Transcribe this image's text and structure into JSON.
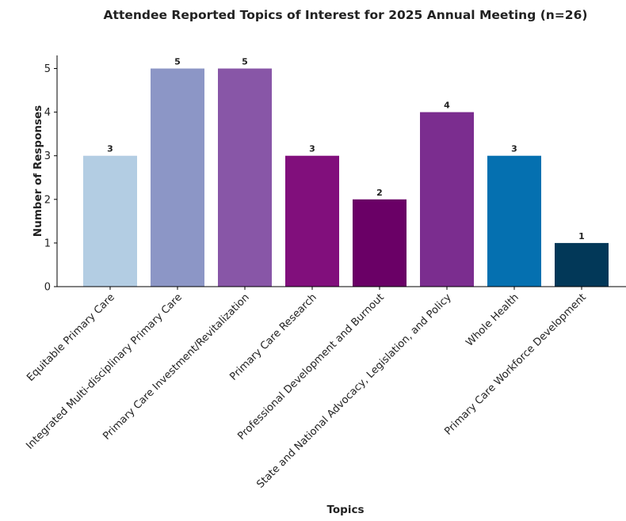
{
  "chart_data": {
    "type": "bar",
    "title": "Attendee Reported Topics of Interest for 2025 Annual Meeting (n=26)",
    "xlabel": "Topics",
    "ylabel": "Number of Responses",
    "categories": [
      "Equitable Primary Care",
      "Integrated Multi-disciplinary Primary Care",
      "Primary Care Investment/Revitalization",
      "Primary Care Research",
      "Professional Development and Burnout",
      "State and National Advocacy, Legislation, and Policy",
      "Whole Health",
      "Primary Care Workforce Development"
    ],
    "values": [
      3,
      5,
      5,
      3,
      2,
      4,
      3,
      1
    ],
    "value_labels": [
      "3",
      "5",
      "5",
      "3",
      "2",
      "4",
      "3",
      "1"
    ],
    "colors": [
      "#b3cde3",
      "#8c96c6",
      "#8856a7",
      "#810f7c",
      "#6a0066",
      "#7b2d8f",
      "#0570b0",
      "#023858"
    ],
    "yticks": [
      "0",
      "1",
      "2",
      "3",
      "4",
      "5"
    ],
    "ylim": [
      0,
      5.3
    ],
    "grid": false,
    "legend": "none"
  }
}
